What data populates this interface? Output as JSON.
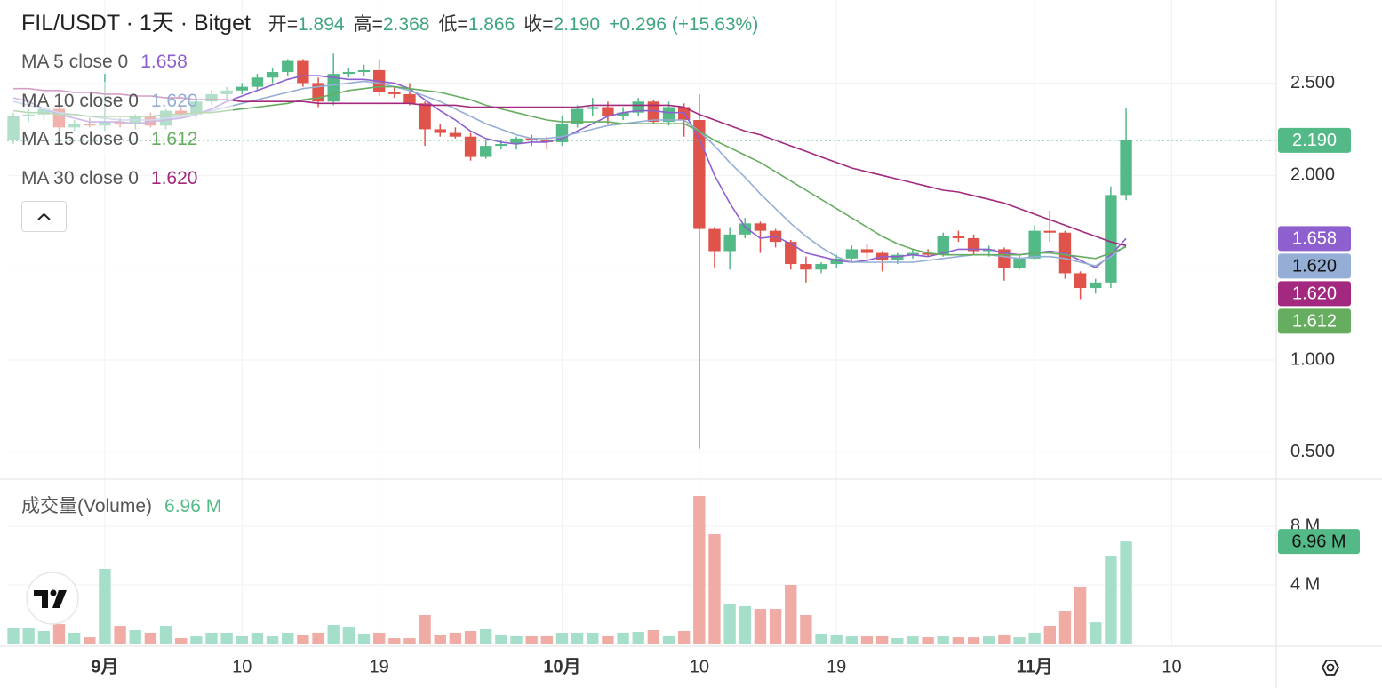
{
  "chart_data": {
    "type": "candlestick",
    "title": "FIL/USDT · 1天 · Bitget",
    "ohlc_legend": [
      {
        "label": "开=",
        "value": "1.894"
      },
      {
        "label": "高=",
        "value": "2.368"
      },
      {
        "label": "低=",
        "value": "1.866"
      },
      {
        "label": "收=",
        "value": "2.190"
      }
    ],
    "change": "+0.296 (+15.63%)",
    "up_color": "#53b987",
    "down_color": "#e0534a",
    "up_volume_color": "#a6dfc9",
    "down_volume_color": "#f0aba4",
    "open": [
      2.19,
      2.32,
      2.33,
      2.36,
      2.26,
      2.28,
      2.27,
      2.29,
      2.28,
      2.32,
      2.27,
      2.35,
      2.33,
      2.4,
      2.44,
      2.46,
      2.48,
      2.53,
      2.56,
      2.62,
      2.5,
      2.4,
      2.55,
      2.56,
      2.57,
      2.45,
      2.44,
      2.39,
      2.25,
      2.23,
      2.21,
      2.1,
      2.16,
      2.17,
      2.2,
      2.19,
      2.18,
      2.28,
      2.36,
      2.37,
      2.32,
      2.34,
      2.4,
      2.29,
      2.37,
      2.3,
      1.71,
      1.59,
      1.68,
      1.74,
      1.7,
      1.64,
      1.52,
      1.49,
      1.52,
      1.55,
      1.6,
      1.58,
      1.54,
      1.57,
      1.58,
      1.57,
      1.67,
      1.66,
      1.59,
      1.6,
      1.5,
      1.55,
      1.7,
      1.69,
      1.47,
      1.39,
      1.42,
      1.894
    ],
    "high": [
      2.34,
      2.36,
      2.37,
      2.38,
      2.3,
      2.31,
      2.55,
      2.31,
      2.33,
      2.34,
      2.36,
      2.37,
      2.42,
      2.46,
      2.48,
      2.5,
      2.55,
      2.58,
      2.63,
      2.63,
      2.53,
      2.66,
      2.58,
      2.6,
      2.63,
      2.48,
      2.5,
      2.4,
      2.28,
      2.26,
      2.23,
      2.19,
      2.19,
      2.21,
      2.22,
      2.21,
      2.32,
      2.38,
      2.42,
      2.4,
      2.37,
      2.42,
      2.41,
      2.4,
      2.39,
      2.44,
      1.72,
      1.72,
      1.77,
      1.75,
      1.71,
      1.65,
      1.56,
      1.53,
      1.57,
      1.62,
      1.63,
      1.59,
      1.58,
      1.6,
      1.6,
      1.69,
      1.7,
      1.68,
      1.62,
      1.61,
      1.57,
      1.73,
      1.81,
      1.7,
      1.48,
      1.44,
      1.94,
      2.368
    ],
    "low": [
      2.17,
      2.29,
      2.3,
      2.22,
      2.24,
      2.26,
      2.24,
      2.26,
      2.25,
      2.26,
      2.25,
      2.32,
      2.31,
      2.38,
      2.41,
      2.44,
      2.46,
      2.5,
      2.54,
      2.48,
      2.37,
      2.38,
      2.53,
      2.54,
      2.43,
      2.42,
      2.38,
      2.16,
      2.21,
      2.2,
      2.08,
      2.09,
      2.14,
      2.14,
      2.16,
      2.14,
      2.16,
      2.26,
      2.32,
      2.28,
      2.3,
      2.32,
      2.28,
      2.27,
      2.21,
      0.52,
      1.5,
      1.49,
      1.66,
      1.58,
      1.61,
      1.49,
      1.42,
      1.47,
      1.5,
      1.53,
      1.55,
      1.48,
      1.52,
      1.55,
      1.56,
      1.56,
      1.64,
      1.57,
      1.56,
      1.43,
      1.49,
      1.54,
      1.64,
      1.44,
      1.33,
      1.36,
      1.39,
      1.866
    ],
    "close": [
      2.32,
      2.33,
      2.36,
      2.26,
      2.28,
      2.27,
      2.29,
      2.28,
      2.32,
      2.27,
      2.35,
      2.33,
      2.4,
      2.44,
      2.46,
      2.48,
      2.53,
      2.56,
      2.62,
      2.5,
      2.4,
      2.55,
      2.56,
      2.57,
      2.45,
      2.44,
      2.39,
      2.25,
      2.23,
      2.21,
      2.1,
      2.16,
      2.17,
      2.2,
      2.19,
      2.18,
      2.28,
      2.36,
      2.37,
      2.32,
      2.34,
      2.4,
      2.29,
      2.37,
      2.3,
      1.71,
      1.59,
      1.68,
      1.74,
      1.7,
      1.64,
      1.52,
      1.49,
      1.52,
      1.55,
      1.6,
      1.58,
      1.54,
      1.57,
      1.58,
      1.57,
      1.67,
      1.66,
      1.59,
      1.6,
      1.5,
      1.55,
      1.7,
      1.69,
      1.47,
      1.39,
      1.42,
      1.894,
      2.19
    ],
    "last_label": "2.190",
    "ylim": [
      0.36,
      2.95
    ],
    "yticks": [
      {
        "value": 0.5,
        "label": "0.500"
      },
      {
        "value": 1,
        "label": "1.000"
      },
      {
        "value": 1.5,
        "label": "1.500"
      },
      {
        "value": 2,
        "label": "2.000"
      },
      {
        "value": 2.5,
        "label": "2.500"
      }
    ],
    "xlim": [
      -0.41,
      82.85
    ],
    "xticks": [
      {
        "value": 6,
        "label": "9月",
        "major": true
      },
      {
        "value": 15,
        "label": "10"
      },
      {
        "value": 24,
        "label": "19"
      },
      {
        "value": 36,
        "label": "10月",
        "major": true
      },
      {
        "value": 45,
        "label": "10"
      },
      {
        "value": 54,
        "label": "19"
      },
      {
        "value": 67,
        "label": "11月",
        "major": true
      },
      {
        "value": 76,
        "label": "10"
      }
    ],
    "grid": true,
    "series": [
      {
        "name": "MA 5 close 0",
        "color": "#8e5fcf",
        "last_label": "1.658",
        "values": [
          2.42,
          2.4,
          2.36,
          2.33,
          2.31,
          2.29,
          2.29,
          2.29,
          2.28,
          2.29,
          2.3,
          2.31,
          2.33,
          2.36,
          2.4,
          2.43,
          2.46,
          2.49,
          2.52,
          2.54,
          2.54,
          2.53,
          2.52,
          2.52,
          2.51,
          2.5,
          2.47,
          2.41,
          2.35,
          2.3,
          2.24,
          2.2,
          2.18,
          2.17,
          2.18,
          2.18,
          2.2,
          2.24,
          2.28,
          2.32,
          2.34,
          2.35,
          2.35,
          2.34,
          2.34,
          2.2,
          2.0,
          1.85,
          1.72,
          1.66,
          1.67,
          1.63,
          1.58,
          1.56,
          1.54,
          1.53,
          1.54,
          1.56,
          1.56,
          1.57,
          1.56,
          1.58,
          1.6,
          1.6,
          1.6,
          1.58,
          1.57,
          1.58,
          1.59,
          1.58,
          1.54,
          1.5,
          1.57,
          1.658
        ]
      },
      {
        "name": "MA 10 close 0",
        "color": "#94aed6",
        "last_label": "1.620",
        "values": [
          2.4,
          2.38,
          2.36,
          2.34,
          2.33,
          2.32,
          2.31,
          2.3,
          2.3,
          2.3,
          2.31,
          2.32,
          2.33,
          2.35,
          2.37,
          2.39,
          2.41,
          2.43,
          2.45,
          2.47,
          2.48,
          2.49,
          2.5,
          2.51,
          2.5,
          2.48,
          2.46,
          2.43,
          2.4,
          2.36,
          2.32,
          2.28,
          2.25,
          2.22,
          2.2,
          2.2,
          2.21,
          2.23,
          2.25,
          2.27,
          2.28,
          2.29,
          2.3,
          2.3,
          2.3,
          2.24,
          2.16,
          2.07,
          1.99,
          1.9,
          1.82,
          1.74,
          1.67,
          1.61,
          1.56,
          1.53,
          1.53,
          1.53,
          1.53,
          1.53,
          1.54,
          1.55,
          1.56,
          1.57,
          1.57,
          1.56,
          1.55,
          1.56,
          1.56,
          1.55,
          1.53,
          1.51,
          1.56,
          1.62
        ]
      },
      {
        "name": "MA 15 close 0",
        "color": "#66ad60",
        "last_label": "1.612",
        "values": [
          2.35,
          2.34,
          2.34,
          2.33,
          2.33,
          2.32,
          2.32,
          2.32,
          2.32,
          2.32,
          2.33,
          2.33,
          2.34,
          2.34,
          2.35,
          2.36,
          2.37,
          2.38,
          2.39,
          2.41,
          2.42,
          2.44,
          2.46,
          2.47,
          2.48,
          2.48,
          2.47,
          2.46,
          2.45,
          2.43,
          2.41,
          2.38,
          2.36,
          2.34,
          2.32,
          2.3,
          2.29,
          2.29,
          2.29,
          2.29,
          2.28,
          2.28,
          2.28,
          2.28,
          2.28,
          2.24,
          2.19,
          2.15,
          2.11,
          2.07,
          2.02,
          1.97,
          1.92,
          1.87,
          1.82,
          1.77,
          1.72,
          1.67,
          1.63,
          1.6,
          1.58,
          1.57,
          1.57,
          1.57,
          1.57,
          1.57,
          1.57,
          1.58,
          1.58,
          1.57,
          1.56,
          1.55,
          1.58,
          1.612
        ]
      },
      {
        "name": "MA 30 close 0",
        "color": "#a3287f",
        "last_label": "1.620",
        "values": [
          2.47,
          2.47,
          2.46,
          2.46,
          2.45,
          2.45,
          2.44,
          2.44,
          2.43,
          2.43,
          2.42,
          2.42,
          2.41,
          2.41,
          2.41,
          2.4,
          2.4,
          2.4,
          2.4,
          2.4,
          2.39,
          2.39,
          2.39,
          2.39,
          2.39,
          2.39,
          2.39,
          2.38,
          2.38,
          2.38,
          2.37,
          2.37,
          2.37,
          2.37,
          2.37,
          2.37,
          2.37,
          2.37,
          2.38,
          2.38,
          2.38,
          2.38,
          2.38,
          2.38,
          2.37,
          2.33,
          2.3,
          2.27,
          2.24,
          2.22,
          2.19,
          2.16,
          2.13,
          2.1,
          2.07,
          2.04,
          2.02,
          2.0,
          1.98,
          1.96,
          1.94,
          1.92,
          1.91,
          1.89,
          1.87,
          1.85,
          1.82,
          1.79,
          1.76,
          1.73,
          1.7,
          1.67,
          1.64,
          1.62
        ]
      }
    ],
    "volume": {
      "title": "成交量(Volume)",
      "last_label": "6.96 M",
      "ylim": [
        0,
        11.15
      ],
      "yticks": [
        {
          "value": 4,
          "label": "4 M"
        },
        {
          "value": 8,
          "label": "8 M"
        }
      ],
      "values": [
        1.09,
        1.03,
        0.85,
        1.33,
        0.73,
        0.42,
        5.09,
        1.21,
        0.91,
        0.73,
        1.21,
        0.36,
        0.48,
        0.73,
        0.73,
        0.55,
        0.73,
        0.48,
        0.73,
        0.61,
        0.73,
        1.27,
        1.15,
        0.67,
        0.73,
        0.36,
        0.36,
        1.94,
        0.61,
        0.73,
        0.85,
        0.97,
        0.61,
        0.55,
        0.55,
        0.55,
        0.73,
        0.73,
        0.73,
        0.55,
        0.73,
        0.79,
        0.91,
        0.55,
        0.85,
        10.06,
        7.45,
        2.67,
        2.55,
        2.36,
        2.36,
        4.0,
        1.94,
        0.67,
        0.61,
        0.48,
        0.48,
        0.55,
        0.36,
        0.48,
        0.42,
        0.48,
        0.42,
        0.42,
        0.48,
        0.61,
        0.42,
        0.73,
        1.21,
        2.24,
        3.88,
        1.45,
        6.0,
        6.96
      ]
    }
  }
}
